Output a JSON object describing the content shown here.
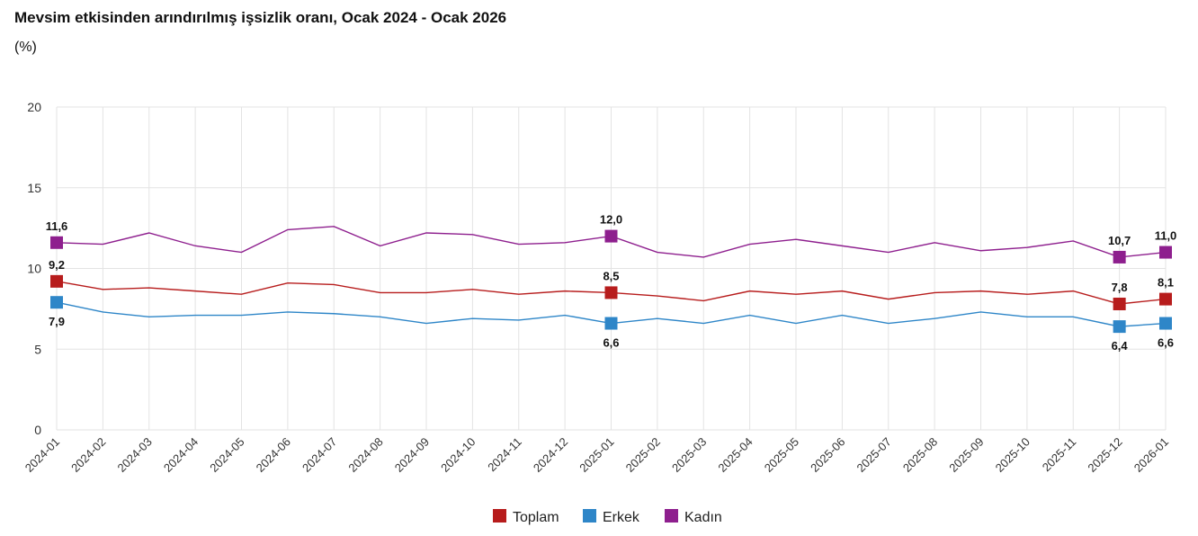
{
  "chart_data": {
    "type": "line",
    "title": "Mevsim etkisinden arındırılmış işsizlik oranı, Ocak 2024 - Ocak 2026",
    "subtitle": "(%)",
    "categories": [
      "2024-01",
      "2024-02",
      "2024-03",
      "2024-04",
      "2024-05",
      "2024-06",
      "2024-07",
      "2024-08",
      "2024-09",
      "2024-10",
      "2024-11",
      "2024-12",
      "2025-01",
      "2025-02",
      "2025-03",
      "2025-04",
      "2025-05",
      "2025-06",
      "2025-07",
      "2025-08",
      "2025-09",
      "2025-10",
      "2025-11",
      "2025-12",
      "2026-01"
    ],
    "ylim": [
      0,
      20
    ],
    "yticks": [
      0,
      5,
      10,
      15,
      20
    ],
    "grid": true,
    "legend": "bottom",
    "labeled_indices": [
      0,
      12,
      23,
      24
    ],
    "series": [
      {
        "name": "Toplam",
        "color": "#b71c1c",
        "values": [
          9.2,
          8.7,
          8.8,
          8.6,
          8.4,
          9.1,
          9.0,
          8.5,
          8.5,
          8.7,
          8.4,
          8.6,
          8.5,
          8.3,
          8.0,
          8.6,
          8.4,
          8.6,
          8.1,
          8.5,
          8.6,
          8.4,
          8.6,
          7.8,
          8.1
        ],
        "label_pos": "above"
      },
      {
        "name": "Erkek",
        "color": "#2e86c8",
        "values": [
          7.9,
          7.3,
          7.0,
          7.1,
          7.1,
          7.3,
          7.2,
          7.0,
          6.6,
          6.9,
          6.8,
          7.1,
          6.6,
          6.9,
          6.6,
          7.1,
          6.6,
          7.1,
          6.6,
          6.9,
          7.3,
          7.0,
          7.0,
          6.4,
          6.6
        ],
        "label_pos": "below"
      },
      {
        "name": "Kadın",
        "color": "#8e1f8e",
        "values": [
          11.6,
          11.5,
          12.2,
          11.4,
          11.0,
          12.4,
          12.6,
          11.4,
          12.2,
          12.1,
          11.5,
          11.6,
          12.0,
          11.0,
          10.7,
          11.5,
          11.8,
          11.4,
          11.0,
          11.6,
          11.1,
          11.3,
          11.7,
          10.7,
          11.0
        ],
        "label_pos": "above"
      }
    ]
  }
}
